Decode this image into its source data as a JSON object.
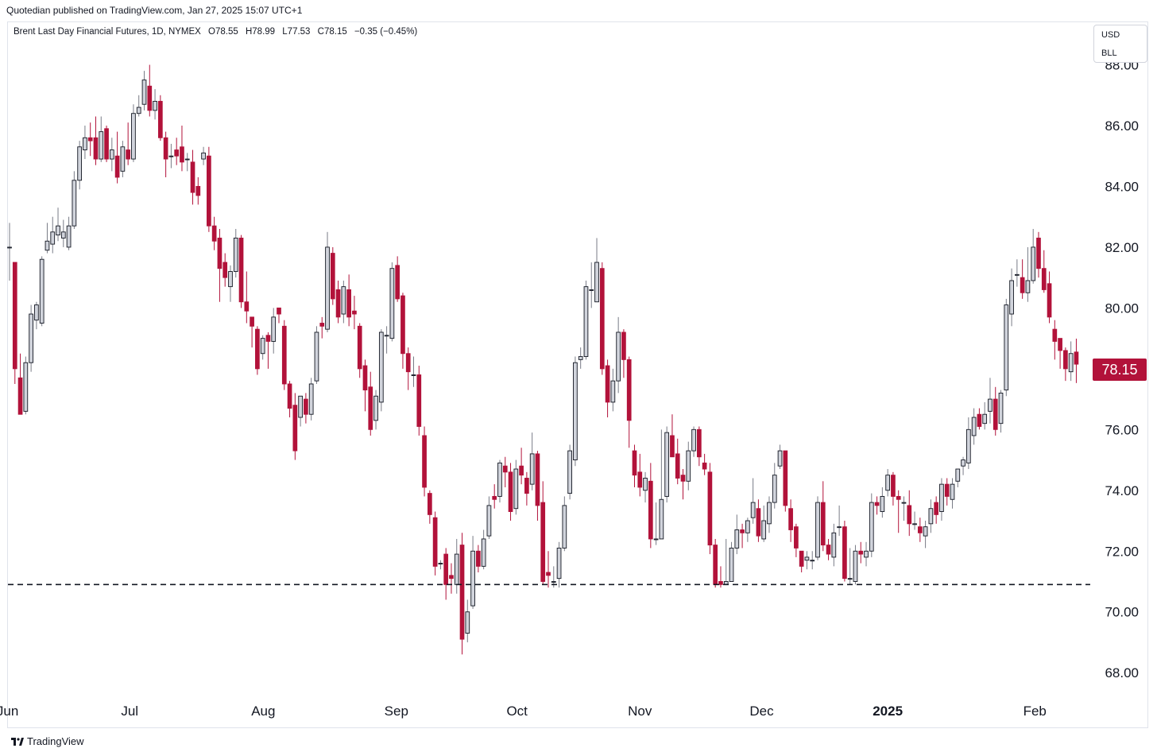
{
  "publisher_line": "Quotedian published on TradingView.com, Jan 27, 2025 15:07 UTC+1",
  "legend": {
    "symbol": "Brent Last Day Financial Futures, 1D, NYMEX",
    "open": "O78.55",
    "high": "H78.99",
    "low": "L77.53",
    "close": "C78.15",
    "change": "−0.35 (−0.45%)"
  },
  "unit_box": {
    "currency": "USD",
    "unit": "BLL"
  },
  "last_price_label": "78.15",
  "brand": "TradingView",
  "colors": {
    "up_fill": "#d1d4dc",
    "up_border": "#131722",
    "down_fill": "#b2123a",
    "wick": "#787b86",
    "last_label": "#b2123a",
    "support_line": "#131722"
  },
  "chart_data": {
    "type": "candlestick",
    "title": "Brent Last Day Financial Futures, 1D, NYMEX",
    "ylim": [
      66.2,
      89.4
    ],
    "y_ticks": [
      "88.00",
      "86.00",
      "84.00",
      "82.00",
      "80.00",
      "78.00",
      "76.00",
      "74.00",
      "72.00",
      "70.00",
      "68.00"
    ],
    "x_ticks": [
      "Jun",
      "Jul",
      "Aug",
      "Sep",
      "Oct",
      "Nov",
      "Dec",
      "2025",
      "Feb"
    ],
    "support_level": 70.9,
    "last_close": 78.15,
    "candles": [
      [
        82.0,
        82.0,
        82.8,
        80.9
      ],
      [
        81.5,
        78.0,
        81.5,
        77.5
      ],
      [
        77.7,
        76.5,
        78.5,
        76.8
      ],
      [
        76.6,
        78.2,
        78.4,
        76.5
      ],
      [
        78.2,
        79.8,
        80.1,
        77.9
      ],
      [
        79.6,
        80.1,
        80.2,
        79.3
      ],
      [
        79.5,
        81.6,
        81.7,
        79.4
      ],
      [
        81.9,
        82.2,
        82.8,
        81.8
      ],
      [
        82.1,
        82.5,
        83.0,
        81.8
      ],
      [
        82.4,
        82.7,
        83.3,
        82.2
      ],
      [
        82.3,
        82.5,
        82.9,
        82.0
      ],
      [
        82.0,
        82.7,
        83.0,
        81.9
      ],
      [
        82.7,
        84.2,
        84.5,
        82.6
      ],
      [
        84.2,
        85.3,
        85.5,
        83.9
      ],
      [
        85.2,
        85.6,
        86.0,
        84.9
      ],
      [
        85.6,
        85.5,
        86.1,
        85.0
      ],
      [
        85.6,
        84.9,
        86.3,
        84.7
      ],
      [
        84.9,
        85.8,
        86.3,
        84.8
      ],
      [
        85.9,
        84.9,
        86.0,
        84.8
      ],
      [
        84.9,
        85.2,
        85.6,
        84.5
      ],
      [
        85.0,
        84.3,
        85.8,
        84.1
      ],
      [
        84.5,
        85.3,
        85.5,
        84.3
      ],
      [
        85.2,
        84.9,
        86.1,
        84.7
      ],
      [
        84.9,
        86.4,
        86.7,
        84.8
      ],
      [
        86.4,
        86.6,
        87.0,
        86.3
      ],
      [
        86.7,
        87.5,
        87.8,
        86.5
      ],
      [
        87.3,
        86.5,
        88.0,
        86.3
      ],
      [
        86.5,
        86.8,
        87.2,
        86.2
      ],
      [
        86.8,
        85.6,
        87.0,
        85.5
      ],
      [
        85.6,
        84.9,
        85.8,
        84.3
      ],
      [
        85.0,
        85.0,
        85.4,
        84.6
      ],
      [
        85.2,
        85.0,
        85.6,
        84.7
      ],
      [
        85.3,
        84.8,
        86.0,
        84.5
      ],
      [
        84.9,
        84.9,
        85.1,
        84.5
      ],
      [
        84.8,
        83.8,
        85.2,
        83.4
      ],
      [
        84.0,
        83.7,
        84.3,
        83.4
      ],
      [
        84.9,
        85.1,
        85.3,
        84.7
      ],
      [
        85.0,
        82.7,
        85.3,
        82.5
      ],
      [
        82.7,
        82.2,
        83.0,
        81.9
      ],
      [
        82.3,
        81.3,
        82.6,
        80.2
      ],
      [
        81.5,
        81.0,
        81.8,
        80.7
      ],
      [
        80.7,
        81.2,
        81.4,
        80.2
      ],
      [
        81.2,
        82.3,
        82.6,
        81.0
      ],
      [
        82.3,
        80.2,
        82.4,
        80.0
      ],
      [
        80.2,
        79.9,
        81.2,
        79.5
      ],
      [
        79.7,
        79.4,
        79.6,
        78.7
      ],
      [
        79.3,
        78.0,
        79.4,
        77.8
      ],
      [
        78.5,
        79.0,
        79.1,
        78.3
      ],
      [
        79.1,
        78.9,
        79.2,
        78.0
      ],
      [
        78.9,
        79.7,
        80.0,
        78.5
      ],
      [
        80.0,
        79.8,
        80.0,
        79.5
      ],
      [
        79.4,
        77.5,
        79.6,
        77.3
      ],
      [
        77.5,
        76.7,
        77.6,
        76.4
      ],
      [
        76.8,
        75.3,
        77.2,
        75.0
      ],
      [
        76.4,
        77.1,
        76.5,
        76.1
      ],
      [
        77.0,
        76.5,
        77.2,
        76.2
      ],
      [
        76.5,
        77.5,
        77.7,
        76.3
      ],
      [
        77.6,
        79.2,
        79.4,
        77.5
      ],
      [
        79.5,
        79.4,
        79.7,
        79.0
      ],
      [
        79.3,
        82.0,
        82.5,
        79.2
      ],
      [
        81.8,
        80.3,
        82.0,
        80.1
      ],
      [
        80.6,
        79.7,
        80.9,
        79.5
      ],
      [
        79.8,
        80.7,
        80.9,
        79.5
      ],
      [
        80.6,
        79.7,
        81.1,
        79.4
      ],
      [
        79.9,
        79.8,
        80.4,
        79.3
      ],
      [
        79.4,
        78.0,
        79.5,
        77.7
      ],
      [
        78.1,
        77.3,
        78.3,
        76.6
      ],
      [
        77.4,
        76.0,
        77.9,
        75.8
      ],
      [
        76.3,
        77.1,
        77.3,
        76.0
      ],
      [
        76.9,
        79.2,
        79.3,
        76.6
      ],
      [
        79.1,
        79.1,
        79.4,
        78.5
      ],
      [
        79.0,
        81.3,
        81.5,
        78.9
      ],
      [
        81.4,
        80.3,
        81.7,
        80.2
      ],
      [
        80.4,
        78.5,
        80.5,
        78.0
      ],
      [
        78.5,
        77.9,
        78.7,
        77.3
      ],
      [
        77.8,
        77.8,
        78.4,
        77.4
      ],
      [
        77.8,
        76.1,
        78.1,
        75.8
      ],
      [
        75.8,
        74.1,
        76.1,
        73.8
      ],
      [
        73.9,
        73.2,
        74.0,
        72.9
      ],
      [
        73.1,
        71.5,
        73.3,
        71.2
      ],
      [
        71.6,
        71.6,
        71.7,
        71.4
      ],
      [
        71.9,
        70.9,
        72.1,
        70.4
      ],
      [
        71.2,
        71.1,
        71.6,
        70.6
      ],
      [
        70.9,
        71.9,
        72.4,
        70.6
      ],
      [
        72.2,
        69.1,
        72.6,
        68.6
      ],
      [
        69.3,
        70.0,
        70.4,
        69.0
      ],
      [
        70.2,
        72.0,
        72.5,
        70.1
      ],
      [
        72.0,
        71.5,
        72.2,
        71.3
      ],
      [
        71.5,
        72.4,
        72.7,
        71.4
      ],
      [
        72.5,
        73.5,
        73.8,
        72.4
      ],
      [
        73.8,
        73.7,
        74.2,
        73.4
      ],
      [
        73.8,
        74.9,
        75.0,
        73.6
      ],
      [
        74.8,
        74.6,
        75.1,
        74.1
      ],
      [
        74.6,
        73.3,
        74.9,
        73.0
      ],
      [
        73.4,
        74.7,
        75.0,
        73.2
      ],
      [
        74.8,
        74.5,
        75.4,
        74.2
      ],
      [
        74.4,
        73.9,
        74.6,
        73.5
      ],
      [
        74.2,
        75.2,
        75.9,
        74.0
      ],
      [
        75.2,
        73.5,
        75.3,
        73.0
      ],
      [
        73.6,
        71.0,
        74.3,
        70.9
      ],
      [
        71.3,
        71.2,
        72.0,
        70.8
      ],
      [
        71.0,
        71.0,
        71.5,
        70.8
      ],
      [
        71.1,
        72.1,
        72.3,
        70.8
      ],
      [
        72.1,
        73.5,
        73.8,
        72.0
      ],
      [
        73.9,
        75.3,
        75.5,
        73.7
      ],
      [
        75.0,
        78.2,
        78.4,
        74.8
      ],
      [
        78.3,
        78.4,
        78.7,
        78.0
      ],
      [
        78.4,
        80.7,
        80.9,
        78.3
      ],
      [
        80.6,
        80.6,
        81.5,
        80.0
      ],
      [
        80.2,
        81.5,
        82.3,
        80.2
      ],
      [
        81.3,
        78.0,
        81.5,
        77.8
      ],
      [
        78.1,
        76.9,
        78.3,
        76.4
      ],
      [
        76.9,
        77.6,
        78.0,
        76.6
      ],
      [
        77.6,
        79.2,
        79.7,
        77.2
      ],
      [
        79.2,
        78.3,
        79.3,
        77.7
      ],
      [
        78.3,
        76.3,
        78.4,
        75.4
      ],
      [
        75.3,
        74.5,
        75.5,
        74.1
      ],
      [
        74.6,
        74.1,
        75.2,
        73.8
      ],
      [
        74.0,
        74.4,
        74.6,
        73.6
      ],
      [
        74.3,
        72.4,
        74.9,
        72.1
      ],
      [
        72.4,
        72.4,
        73.6,
        72.2
      ],
      [
        72.4,
        73.7,
        76.0,
        72.4
      ],
      [
        73.8,
        75.9,
        76.1,
        73.6
      ],
      [
        75.8,
        75.1,
        76.5,
        75.3
      ],
      [
        75.2,
        74.4,
        75.7,
        74.2
      ],
      [
        74.5,
        74.3,
        74.7,
        73.7
      ],
      [
        74.3,
        75.3,
        75.6,
        74.0
      ],
      [
        75.3,
        76.0,
        76.1,
        75.1
      ],
      [
        76.0,
        75.1,
        76.1,
        74.8
      ],
      [
        74.9,
        74.7,
        75.2,
        74.5
      ],
      [
        74.6,
        72.2,
        74.9,
        71.9
      ],
      [
        72.2,
        70.9,
        72.4,
        70.8
      ],
      [
        71.0,
        70.9,
        71.5,
        70.8
      ],
      [
        70.9,
        71.0,
        72.4,
        71.0
      ],
      [
        71.0,
        72.1,
        72.3,
        71.0
      ],
      [
        72.1,
        72.7,
        73.2,
        71.9
      ],
      [
        72.7,
        72.6,
        72.9,
        72.1
      ],
      [
        72.6,
        73.0,
        73.1,
        72.3
      ],
      [
        73.1,
        73.6,
        74.4,
        72.9
      ],
      [
        73.4,
        72.5,
        73.7,
        72.3
      ],
      [
        72.4,
        73.0,
        73.5,
        72.3
      ],
      [
        72.9,
        73.6,
        73.8,
        72.6
      ],
      [
        73.6,
        74.5,
        74.9,
        73.4
      ],
      [
        74.8,
        75.3,
        75.5,
        74.7
      ],
      [
        75.3,
        73.5,
        75.3,
        73.3
      ],
      [
        73.4,
        72.7,
        73.7,
        72.3
      ],
      [
        72.8,
        72.1,
        72.9,
        71.8
      ],
      [
        72.0,
        71.5,
        72.0,
        71.3
      ],
      [
        71.7,
        71.8,
        72.0,
        71.4
      ],
      [
        71.7,
        71.7,
        72.0,
        71.4
      ],
      [
        71.8,
        73.6,
        73.8,
        71.7
      ],
      [
        73.6,
        72.2,
        74.3,
        72.0
      ],
      [
        72.2,
        71.9,
        72.4,
        71.7
      ],
      [
        71.8,
        72.6,
        72.9,
        71.5
      ],
      [
        72.8,
        72.8,
        73.5,
        72.5
      ],
      [
        72.8,
        71.1,
        73.0,
        71.0
      ],
      [
        71.1,
        71.1,
        72.1,
        70.9
      ],
      [
        71.0,
        72.0,
        72.2,
        70.9
      ],
      [
        72.0,
        71.9,
        72.3,
        71.6
      ],
      [
        71.8,
        72.0,
        72.3,
        71.5
      ],
      [
        72.0,
        73.6,
        73.9,
        71.8
      ],
      [
        73.6,
        73.5,
        73.8,
        73.2
      ],
      [
        73.3,
        73.8,
        74.1,
        73.1
      ],
      [
        74.0,
        74.5,
        74.7,
        73.8
      ],
      [
        74.5,
        73.8,
        74.6,
        73.5
      ],
      [
        73.8,
        73.7,
        74.0,
        72.6
      ],
      [
        73.6,
        73.6,
        73.8,
        73.0
      ],
      [
        73.5,
        72.9,
        74.0,
        72.5
      ],
      [
        72.9,
        72.9,
        73.3,
        72.7
      ],
      [
        72.8,
        72.6,
        73.1,
        72.3
      ],
      [
        72.5,
        72.8,
        73.0,
        72.1
      ],
      [
        72.9,
        73.4,
        73.7,
        72.6
      ],
      [
        73.6,
        73.2,
        73.8,
        72.9
      ],
      [
        73.3,
        74.2,
        74.4,
        73.0
      ],
      [
        74.2,
        73.8,
        74.4,
        73.5
      ],
      [
        73.7,
        74.2,
        74.4,
        73.4
      ],
      [
        74.3,
        74.7,
        74.6,
        74.1
      ],
      [
        74.8,
        75.0,
        75.1,
        74.5
      ],
      [
        74.9,
        76.0,
        76.4,
        74.7
      ],
      [
        75.8,
        76.4,
        76.7,
        75.5
      ],
      [
        76.5,
        76.1,
        76.7,
        76.0
      ],
      [
        76.2,
        76.5,
        76.9,
        76.0
      ],
      [
        76.6,
        77.0,
        77.7,
        76.2
      ],
      [
        77.0,
        76.0,
        77.4,
        75.8
      ],
      [
        76.2,
        77.2,
        77.3,
        75.9
      ],
      [
        77.3,
        80.1,
        80.3,
        77.1
      ],
      [
        79.8,
        80.9,
        81.3,
        79.4
      ],
      [
        81.1,
        81.1,
        81.6,
        80.7
      ],
      [
        81.0,
        80.5,
        81.6,
        80.3
      ],
      [
        80.5,
        80.9,
        82.0,
        80.2
      ],
      [
        80.9,
        82.0,
        82.6,
        80.8
      ],
      [
        82.3,
        81.3,
        82.5,
        81.0
      ],
      [
        81.3,
        80.6,
        81.9,
        80.5
      ],
      [
        80.8,
        79.7,
        81.2,
        79.5
      ],
      [
        79.3,
        78.9,
        79.6,
        78.3
      ],
      [
        79.0,
        78.6,
        78.9,
        78.0
      ],
      [
        78.6,
        78.0,
        78.7,
        77.6
      ],
      [
        77.9,
        78.5,
        78.9,
        77.6
      ],
      [
        78.55,
        78.15,
        78.99,
        77.53
      ]
    ]
  }
}
